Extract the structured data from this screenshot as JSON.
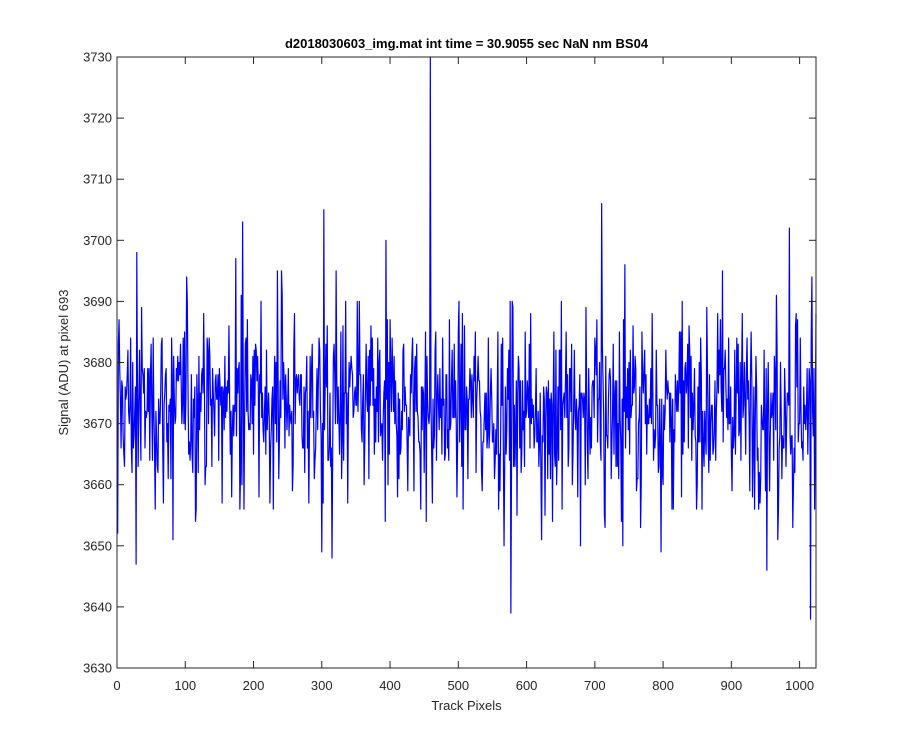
{
  "chart_data": {
    "type": "line",
    "title": "d2018030603_img.mat int time = 30.9055 sec  NaN nm BS04",
    "xlabel": "Track Pixels",
    "ylabel": "Signal (ADU) at pixel 693",
    "xlim": [
      0,
      1024
    ],
    "ylim": [
      3630,
      3730
    ],
    "xticks": [
      0,
      100,
      200,
      300,
      400,
      500,
      600,
      700,
      800,
      900,
      1000
    ],
    "yticks": [
      3630,
      3640,
      3650,
      3660,
      3670,
      3680,
      3690,
      3700,
      3710,
      3720,
      3730
    ],
    "grid": false,
    "box": true,
    "series": [
      {
        "color": "#0000ff",
        "x_start": 1,
        "x_step": 1,
        "count": 1024,
        "y_baseline": 3673,
        "notable_points": [
          {
            "x": 1,
            "y": 3652
          },
          {
            "x": 29,
            "y": 3698
          },
          {
            "x": 28,
            "y": 3647
          },
          {
            "x": 82,
            "y": 3651
          },
          {
            "x": 184,
            "y": 3703
          },
          {
            "x": 300,
            "y": 3649
          },
          {
            "x": 303,
            "y": 3705
          },
          {
            "x": 315,
            "y": 3648
          },
          {
            "x": 394,
            "y": 3700
          },
          {
            "x": 459,
            "y": 3730
          },
          {
            "x": 577,
            "y": 3639
          },
          {
            "x": 710,
            "y": 3706
          },
          {
            "x": 952,
            "y": 3646
          },
          {
            "x": 985,
            "y": 3702
          },
          {
            "x": 1016,
            "y": 3638
          },
          {
            "x": 1018,
            "y": 3694
          },
          {
            "x": 1024,
            "y": 3688
          }
        ]
      }
    ]
  }
}
